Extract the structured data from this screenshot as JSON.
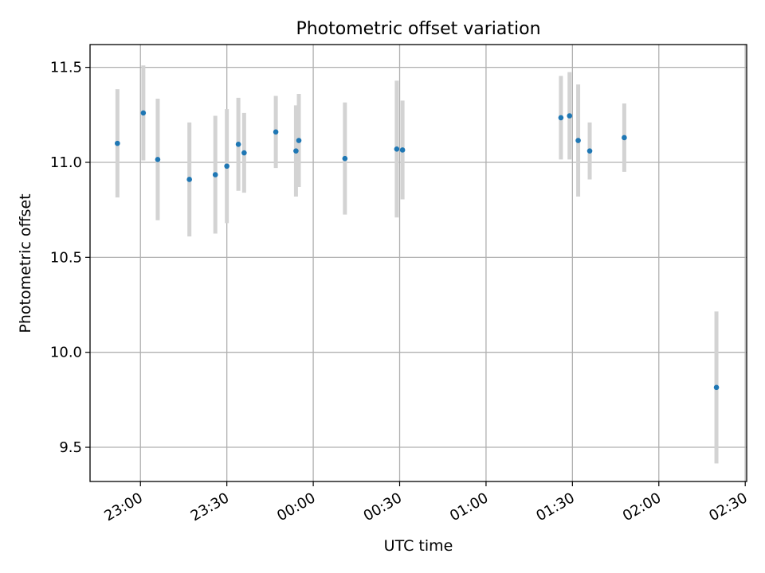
{
  "chart_data": {
    "type": "scatter",
    "title": "Photometric offset variation",
    "xlabel": "UTC time",
    "ylabel": "Photometric offset",
    "x_ticks": [
      "23:00",
      "23:30",
      "00:00",
      "00:30",
      "01:00",
      "01:30",
      "02:00",
      "02:30"
    ],
    "x_tick_minutes": [
      0,
      30,
      60,
      90,
      120,
      150,
      180,
      210
    ],
    "x_range_minutes": [
      -17.5,
      210.5
    ],
    "y_ticks": [
      "9.5",
      "10.0",
      "10.5",
      "11.0",
      "11.5"
    ],
    "y_tick_values": [
      9.5,
      10.0,
      10.5,
      11.0,
      11.5
    ],
    "ylim": [
      9.32,
      11.62
    ],
    "grid": true,
    "point_color": "#1f77b4",
    "errorbar_color": "#d3d3d3",
    "series": [
      {
        "points": [
          {
            "t": "22:52",
            "y": 11.1,
            "err": 0.285
          },
          {
            "t": "23:01",
            "y": 11.26,
            "err": 0.25
          },
          {
            "t": "23:06",
            "y": 11.015,
            "err": 0.32
          },
          {
            "t": "23:17",
            "y": 10.91,
            "err": 0.3
          },
          {
            "t": "23:26",
            "y": 10.935,
            "err": 0.31
          },
          {
            "t": "23:30",
            "y": 10.98,
            "err": 0.3
          },
          {
            "t": "23:34",
            "y": 11.095,
            "err": 0.245
          },
          {
            "t": "23:36",
            "y": 11.05,
            "err": 0.21
          },
          {
            "t": "23:47",
            "y": 11.16,
            "err": 0.19
          },
          {
            "t": "23:54",
            "y": 11.06,
            "err": 0.24
          },
          {
            "t": "23:55",
            "y": 11.115,
            "err": 0.245
          },
          {
            "t": "00:11",
            "y": 11.02,
            "err": 0.295
          },
          {
            "t": "00:29",
            "y": 11.07,
            "err": 0.36
          },
          {
            "t": "00:31",
            "y": 11.065,
            "err": 0.26
          },
          {
            "t": "01:26",
            "y": 11.235,
            "err": 0.22
          },
          {
            "t": "01:29",
            "y": 11.245,
            "err": 0.23
          },
          {
            "t": "01:32",
            "y": 11.115,
            "err": 0.295
          },
          {
            "t": "01:36",
            "y": 11.06,
            "err": 0.15
          },
          {
            "t": "01:48",
            "y": 11.13,
            "err": 0.18
          },
          {
            "t": "02:20",
            "y": 9.815,
            "err": 0.4
          }
        ]
      }
    ]
  }
}
